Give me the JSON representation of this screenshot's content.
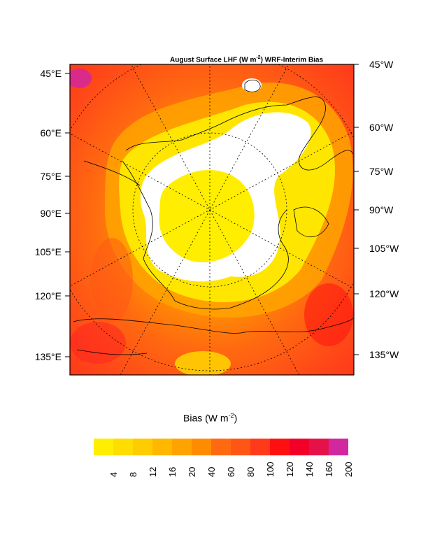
{
  "map": {
    "title_prefix": "August Surface LHF (W m",
    "title_sup": "-2",
    "title_suffix": ") WRF-Interim Bias",
    "left_lat_labels": [
      "45°E",
      "60°E",
      "75°E",
      "90°E",
      "105°E",
      "120°E",
      "135°E"
    ],
    "right_lat_labels": [
      "45°W",
      "60°W",
      "75°W",
      "90°W",
      "105°W",
      "120°W",
      "135°W"
    ]
  },
  "colorbar": {
    "title_prefix": "Bias (W m",
    "title_sup": "-2",
    "title_suffix": ")",
    "tick_labels": [
      "4",
      "8",
      "12",
      "16",
      "20",
      "40",
      "60",
      "80",
      "100",
      "120",
      "140",
      "160",
      "200"
    ],
    "colors": [
      "#ffee00",
      "#ffdd00",
      "#ffcc00",
      "#ffb700",
      "#ffa300",
      "#ff8c00",
      "#ff6a10",
      "#ff5515",
      "#ff3a1a",
      "#ff1010",
      "#f20028",
      "#e5124a",
      "#d2279f"
    ]
  }
}
